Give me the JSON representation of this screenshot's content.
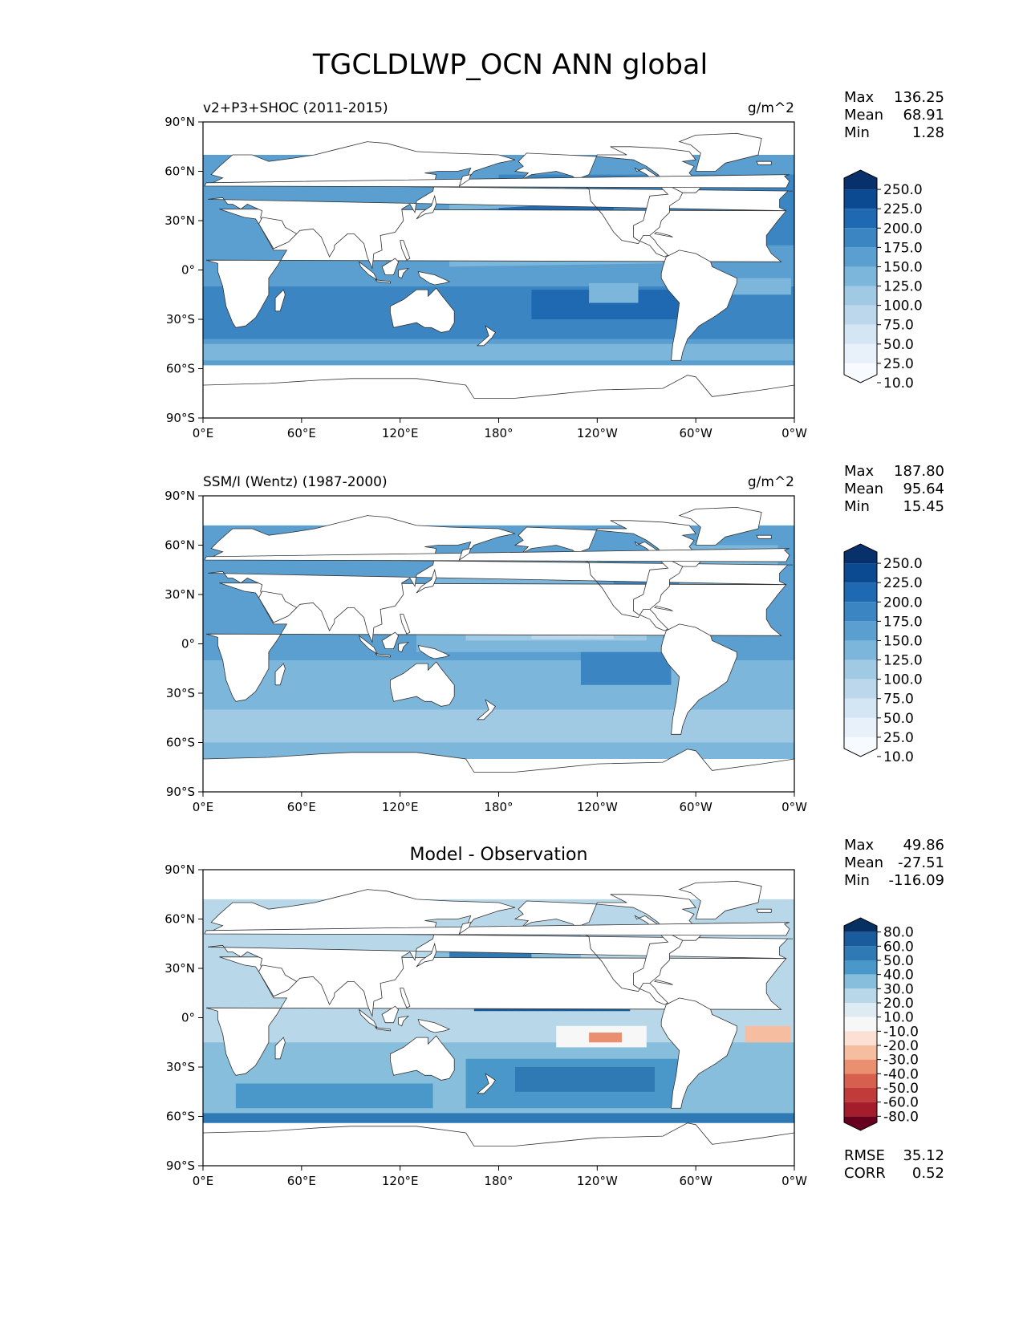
{
  "title": "TGCLDLWP_OCN ANN global",
  "chart_data": [
    {
      "type": "heatmap",
      "projection": "plate-carree",
      "title": "",
      "subtitle_left": "v2+P3+SHOC (2011-2015)",
      "subtitle_right": "g/m^2",
      "xticks": [
        "0°E",
        "60°E",
        "120°E",
        "180°",
        "120°W",
        "60°W",
        "0°W"
      ],
      "yticks": [
        "90°N",
        "60°N",
        "30°N",
        "0°",
        "30°S",
        "60°S",
        "90°S"
      ],
      "xlim": [
        0,
        360
      ],
      "ylim": [
        -90,
        90
      ],
      "stats": [
        {
          "label": "Max",
          "value": "136.25"
        },
        {
          "label": "Mean",
          "value": "68.91"
        },
        {
          "label": "Min",
          "value": "1.28"
        }
      ],
      "colorbar": {
        "levels": [
          "250.0",
          "225.0",
          "200.0",
          "175.0",
          "150.0",
          "125.0",
          "100.0",
          "75.0",
          "50.0",
          "25.0",
          "10.0"
        ],
        "colors": [
          "#08306b",
          "#0b4a90",
          "#1f69b2",
          "#3a85c2",
          "#5a9fd0",
          "#7db6db",
          "#a0c9e3",
          "#bcd7ec",
          "#d4e5f3",
          "#e8f1f9",
          "#f7fbff"
        ]
      },
      "field": "model"
    },
    {
      "type": "heatmap",
      "projection": "plate-carree",
      "title": "",
      "subtitle_left": "SSM/I (Wentz) (1987-2000)",
      "subtitle_right": "g/m^2",
      "xticks": [
        "0°E",
        "60°E",
        "120°E",
        "180°",
        "120°W",
        "60°W",
        "0°W"
      ],
      "yticks": [
        "90°N",
        "60°N",
        "30°N",
        "0°",
        "30°S",
        "60°S",
        "90°S"
      ],
      "xlim": [
        0,
        360
      ],
      "ylim": [
        -90,
        90
      ],
      "stats": [
        {
          "label": "Max",
          "value": "187.80"
        },
        {
          "label": "Mean",
          "value": "95.64"
        },
        {
          "label": "Min",
          "value": "15.45"
        }
      ],
      "colorbar": {
        "levels": [
          "250.0",
          "225.0",
          "200.0",
          "175.0",
          "150.0",
          "125.0",
          "100.0",
          "75.0",
          "50.0",
          "25.0",
          "10.0"
        ],
        "colors": [
          "#08306b",
          "#0b4a90",
          "#1f69b2",
          "#3a85c2",
          "#5a9fd0",
          "#7db6db",
          "#a0c9e3",
          "#bcd7ec",
          "#d4e5f3",
          "#e8f1f9",
          "#f7fbff"
        ]
      },
      "field": "obs"
    },
    {
      "type": "heatmap",
      "projection": "plate-carree",
      "title": "Model - Observation",
      "subtitle_left": "",
      "subtitle_right": "",
      "xticks": [
        "0°E",
        "60°E",
        "120°E",
        "180°",
        "120°W",
        "60°W",
        "0°W"
      ],
      "yticks": [
        "90°N",
        "60°N",
        "30°N",
        "0°",
        "30°S",
        "60°S",
        "90°S"
      ],
      "xlim": [
        0,
        360
      ],
      "ylim": [
        -90,
        90
      ],
      "stats": [
        {
          "label": "Max",
          "value": "49.86"
        },
        {
          "label": "Mean",
          "value": "-27.51"
        },
        {
          "label": "Min",
          "value": "-116.09"
        }
      ],
      "extra_stats": [
        {
          "label": "RMSE",
          "value": "35.12"
        },
        {
          "label": "CORR",
          "value": "0.52"
        }
      ],
      "colorbar": {
        "levels": [
          "80.0",
          "60.0",
          "50.0",
          "40.0",
          "30.0",
          "20.0",
          "10.0",
          "-10.0",
          "-20.0",
          "-30.0",
          "-40.0",
          "-50.0",
          "-60.0",
          "-80.0"
        ],
        "colors": [
          "#053061",
          "#1a5b9c",
          "#2f79b5",
          "#4a98c9",
          "#87bedc",
          "#b8d8e9",
          "#deebf2",
          "#f7f7f7",
          "#fbe0d3",
          "#f7bda1",
          "#ea9071",
          "#d6604d",
          "#c23b3b",
          "#a51c2d",
          "#67001f"
        ]
      },
      "field": "diff"
    }
  ]
}
